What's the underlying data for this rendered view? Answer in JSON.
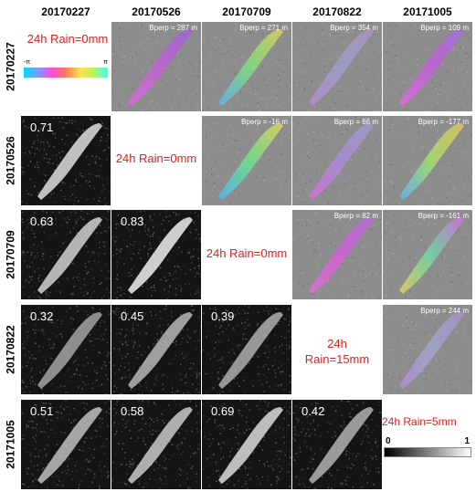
{
  "dates": [
    "20170227",
    "20170526",
    "20170709",
    "20170822",
    "20171005"
  ],
  "interferograms": [
    {
      "row": 0,
      "col": 1,
      "bperp": "Bperp = 287 m",
      "colors": [
        "#d86bdc",
        "#c062d2",
        "#9e62d4"
      ]
    },
    {
      "row": 0,
      "col": 2,
      "bperp": "Bperp = 271 m",
      "colors": [
        "#5fb3f2",
        "#7fe07a",
        "#dcd25e"
      ]
    },
    {
      "row": 0,
      "col": 3,
      "bperp": "Bperp = 354 m",
      "colors": [
        "#b98ad6",
        "#9aa0c8",
        "#a993c2"
      ]
    },
    {
      "row": 0,
      "col": 4,
      "bperp": "Bperp = 109 m",
      "colors": [
        "#dd6de0",
        "#c05fd6",
        "#a36fd8"
      ]
    },
    {
      "row": 1,
      "col": 2,
      "bperp": "Bperp = -16 m",
      "colors": [
        "#4fb7f4",
        "#6fe38a",
        "#e3d65a"
      ]
    },
    {
      "row": 1,
      "col": 3,
      "bperp": "Bperp = 66 m",
      "colors": [
        "#d76fd4",
        "#a98ad6",
        "#9b9dd0"
      ]
    },
    {
      "row": 1,
      "col": 4,
      "bperp": "Bperp = -177 m",
      "colors": [
        "#58b6f0",
        "#a6e06c",
        "#e4c35e"
      ]
    },
    {
      "row": 2,
      "col": 3,
      "bperp": "Bperp = 82 m",
      "colors": [
        "#e06ed0",
        "#d25fd6",
        "#b46fe0"
      ]
    },
    {
      "row": 2,
      "col": 4,
      "bperp": "Bperp = -161 m",
      "colors": [
        "#e2d25e",
        "#6fd8a6",
        "#d36ee0"
      ]
    },
    {
      "row": 3,
      "col": 4,
      "bperp": "Bperp = 244 m",
      "colors": [
        "#b58cd8",
        "#9fa6cc",
        "#aa92c6"
      ]
    }
  ],
  "coherence": [
    {
      "row": 1,
      "col": 0,
      "value": "0.71",
      "level": 0.71
    },
    {
      "row": 2,
      "col": 0,
      "value": "0.63",
      "level": 0.63
    },
    {
      "row": 2,
      "col": 1,
      "value": "0.83",
      "level": 0.83
    },
    {
      "row": 3,
      "col": 0,
      "value": "0.32",
      "level": 0.32
    },
    {
      "row": 3,
      "col": 1,
      "value": "0.45",
      "level": 0.45
    },
    {
      "row": 3,
      "col": 2,
      "value": "0.39",
      "level": 0.39
    },
    {
      "row": 4,
      "col": 0,
      "value": "0.51",
      "level": 0.51
    },
    {
      "row": 4,
      "col": 1,
      "value": "0.58",
      "level": 0.58
    },
    {
      "row": 4,
      "col": 2,
      "value": "0.69",
      "level": 0.69
    },
    {
      "row": 4,
      "col": 3,
      "value": "0.42",
      "level": 0.42
    }
  ],
  "rain": [
    {
      "row": 0,
      "text": "24h Rain=0mm"
    },
    {
      "row": 1,
      "text": "24h Rain=0mm"
    },
    {
      "row": 2,
      "text": "24h Rain=0mm"
    },
    {
      "row": 3,
      "text_line1": "24h",
      "text_line2": "Rain=15mm"
    },
    {
      "row": 4,
      "text": "24h Rain=5mm"
    }
  ],
  "phase_legend": {
    "min": "-π",
    "max": "π"
  },
  "coherence_legend": {
    "min": "0",
    "max": "1"
  },
  "colors": {
    "rain_text": "#e0201e",
    "interferogram_bg": "#8d8d8d",
    "coherence_bg": "#141414"
  }
}
